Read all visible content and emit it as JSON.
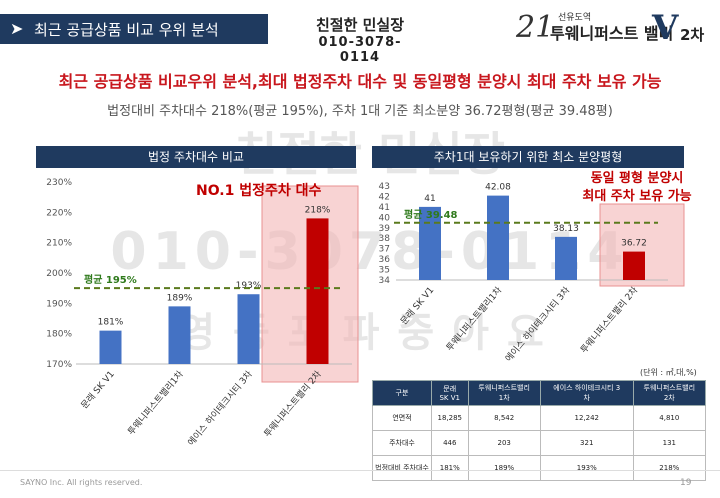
{
  "header": {
    "section_title": "최근 공급상품 비교 우위 분석",
    "stamp_line1": "친절한 민실장",
    "stamp_line2": "010-3078-0114",
    "logo_small": "선유도역",
    "logo_brand": "투웨니퍼스트 밸리",
    "logo_v": "V",
    "logo_cha": "2차"
  },
  "main_title": "최근 공급상품 비교우위 분석,최대 법정주차 대수 및 동일평형 분양시 최대 주차 보유 가능",
  "sub_title": "법정대비 주차대수 218%(평균 195%), 주차 1대 기준 최소분양 36.72평형(평균 39.48평)",
  "watermark": {
    "line1": "친절한 민실장",
    "line2": "010-3078-0114",
    "line3": "영등포파중아요"
  },
  "charts": {
    "left_header": "법정 주차대수 비교",
    "right_header": "주차1대 보유하기 위한 최소 분양평형",
    "left_callout": "NO.1 법정주차 대수",
    "right_callout_1": "동일 평형 분양시",
    "right_callout_2": "최대 주차 보유 가능"
  },
  "chart_data": [
    {
      "type": "bar",
      "title": "법정 주차대수 비교",
      "categories": [
        "문래 SK V1",
        "투웨니퍼스트밸리1차",
        "에이스 하이테크시티 3차",
        "투웨니퍼스트밸리 2차"
      ],
      "values": [
        181,
        189,
        193,
        218
      ],
      "value_labels": [
        "181%",
        "189%",
        "193%",
        "218%"
      ],
      "yticks": [
        "170%",
        "180%",
        "190%",
        "200%",
        "210%",
        "220%",
        "230%"
      ],
      "ylim": [
        170,
        230
      ],
      "average": 195,
      "average_label": "평균 195%",
      "colors": [
        "#4472c4",
        "#4472c4",
        "#4472c4",
        "#c00000"
      ],
      "highlight": "투웨니퍼스트밸리 2차"
    },
    {
      "type": "bar",
      "title": "주차1대 보유하기 위한 최소 분양평형",
      "categories": [
        "문래 SK V1",
        "투웨니퍼스트밸리1차",
        "에이스 하이테크시티 3차",
        "투웨니퍼스트밸리 2차"
      ],
      "values": [
        41,
        42.08,
        38.13,
        36.72
      ],
      "value_labels": [
        "41",
        "42.08",
        "38.13",
        "36.72"
      ],
      "yticks": [
        "34",
        "35",
        "36",
        "37",
        "38",
        "39",
        "40",
        "41",
        "42",
        "43"
      ],
      "ylim": [
        34,
        43
      ],
      "average": 39.48,
      "average_label": "평균 39.48",
      "colors": [
        "#4472c4",
        "#4472c4",
        "#4472c4",
        "#c00000"
      ],
      "highlight": "투웨니퍼스트밸리 2차"
    }
  ],
  "table": {
    "unit": "(단위 : ㎡,대,%)",
    "headers": [
      "구분",
      "문래\nSK V1",
      "투웨니퍼스트밸리\n1차",
      "에이스 하이테크시티 3\n차",
      "투웨니퍼스트밸리\n2차"
    ],
    "rows": [
      [
        "연면적",
        "18,285",
        "8,542",
        "12,242",
        "4,810"
      ],
      [
        "주차대수",
        "446",
        "203",
        "321",
        "131"
      ],
      [
        "법정대비 주차대수",
        "181%",
        "189%",
        "193%",
        "218%"
      ]
    ]
  },
  "footer": {
    "copyright": "SAYNO Inc. All rights reserved.",
    "page": "19"
  }
}
